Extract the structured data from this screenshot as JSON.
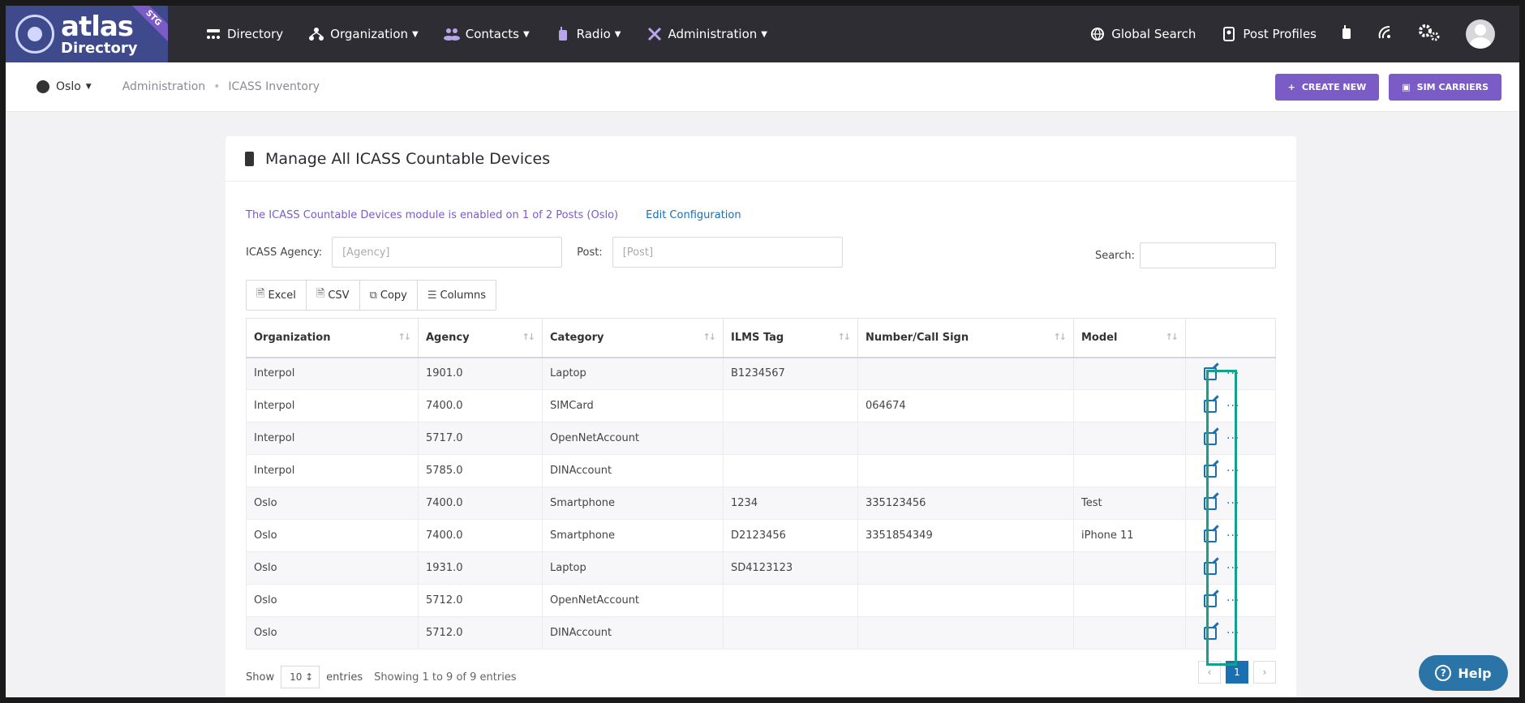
{
  "brand": {
    "name": "atlas",
    "sub": "Directory",
    "badge": "STG"
  },
  "nav": {
    "items": [
      {
        "label": "Directory",
        "dropdown": false,
        "icon": "directory-icon"
      },
      {
        "label": "Organization",
        "dropdown": true,
        "icon": "org-icon"
      },
      {
        "label": "Contacts",
        "dropdown": true,
        "icon": "contacts-icon"
      },
      {
        "label": "Radio",
        "dropdown": true,
        "icon": "radio-icon"
      },
      {
        "label": "Administration",
        "dropdown": true,
        "icon": "tools-icon"
      }
    ],
    "global_search": "Global Search",
    "post_profiles": "Post Profiles"
  },
  "subbar": {
    "post": "Oslo",
    "crumbs": [
      "Administration",
      "ICASS Inventory"
    ],
    "create_new": "CREATE NEW",
    "sim_carriers": "SIM CARRIERS"
  },
  "card": {
    "title": "Manage All ICASS Countable Devices",
    "info": "The ICASS Countable Devices module is enabled on 1 of 2 Posts (Oslo)",
    "edit_config": "Edit Configuration",
    "agency_label": "ICASS Agency:",
    "agency_placeholder": "[Agency]",
    "post_label": "Post:",
    "post_placeholder": "[Post]",
    "search_label": "Search:",
    "tools": {
      "excel": "Excel",
      "csv": "CSV",
      "copy": "Copy",
      "columns": "Columns"
    }
  },
  "table": {
    "headers": [
      "Organization",
      "Agency",
      "Category",
      "ILMS Tag",
      "Number/Call Sign",
      "Model"
    ],
    "rows": [
      [
        "Interpol",
        "1901.0",
        "Laptop",
        "B1234567",
        "",
        ""
      ],
      [
        "Interpol",
        "7400.0",
        "SIMCard",
        "",
        "064674",
        ""
      ],
      [
        "Interpol",
        "5717.0",
        "OpenNetAccount",
        "",
        "",
        ""
      ],
      [
        "Interpol",
        "5785.0",
        "DINAccount",
        "",
        "",
        ""
      ],
      [
        "Oslo",
        "7400.0",
        "Smartphone",
        "1234",
        "335123456",
        "Test"
      ],
      [
        "Oslo",
        "7400.0",
        "Smartphone",
        "D2123456",
        "3351854349",
        "iPhone 11"
      ],
      [
        "Oslo",
        "1931.0",
        "Laptop",
        "SD4123123",
        "",
        ""
      ],
      [
        "Oslo",
        "5712.0",
        "OpenNetAccount",
        "",
        "",
        ""
      ],
      [
        "Oslo",
        "5712.0",
        "DINAccount",
        "",
        "",
        ""
      ]
    ]
  },
  "footer": {
    "show": "Show",
    "entries_value": "10",
    "entries": "entries",
    "info": "Showing 1 to 9 of 9 entries",
    "page": "1"
  },
  "help": "Help"
}
